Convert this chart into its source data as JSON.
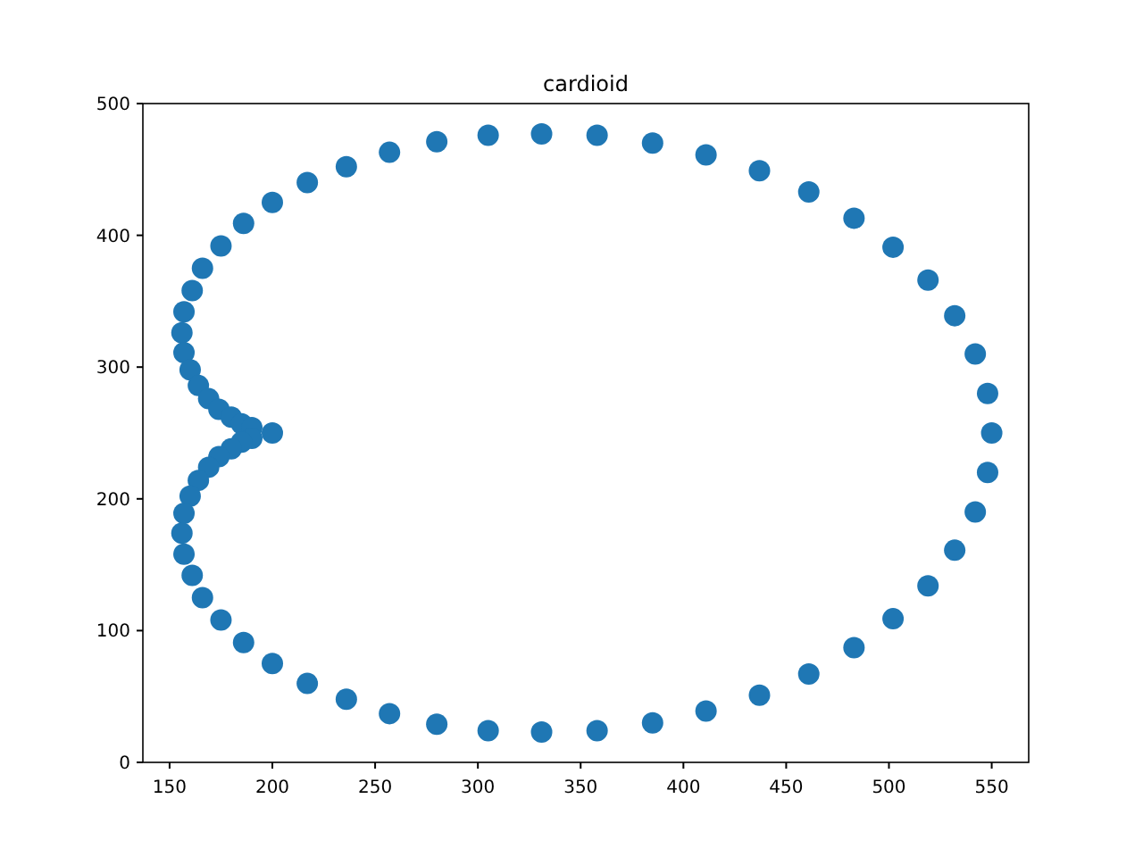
{
  "chart_data": {
    "type": "scatter",
    "title": "cardioid",
    "x": [
      550,
      548,
      542,
      532,
      519,
      502,
      483,
      461,
      437,
      411,
      385,
      358,
      331,
      305,
      280,
      257,
      236,
      217,
      200,
      186,
      175,
      166,
      161,
      157,
      156,
      157,
      160,
      164,
      169,
      174,
      180,
      185,
      190,
      200,
      190,
      185,
      180,
      174,
      169,
      164,
      160,
      157,
      156,
      157,
      161,
      166,
      175,
      186,
      200,
      217,
      236,
      257,
      280,
      305,
      331,
      358,
      385,
      411,
      437,
      461,
      483,
      502,
      519,
      532,
      542,
      548
    ],
    "series": [
      {
        "color": "#1f77b4",
        "values": [
          250,
          280,
          310,
          339,
          366,
          391,
          413,
          433,
          449,
          461,
          470,
          476,
          477,
          476,
          471,
          463,
          452,
          440,
          425,
          409,
          392,
          375,
          358,
          342,
          326,
          311,
          298,
          286,
          276,
          268,
          262,
          257,
          254,
          250,
          246,
          243,
          238,
          232,
          224,
          214,
          202,
          189,
          174,
          158,
          142,
          125,
          108,
          91,
          75,
          60,
          48,
          37,
          29,
          24,
          23,
          24,
          30,
          39,
          51,
          67,
          87,
          109,
          134,
          161,
          190,
          220
        ]
      }
    ],
    "xlim": [
      137,
      568
    ],
    "xticks": [
      150,
      200,
      250,
      300,
      350,
      400,
      450,
      500,
      550
    ],
    "ylim": [
      0,
      500
    ],
    "yticks": [
      0,
      100,
      200,
      300,
      400,
      500
    ],
    "marker": "circle",
    "grid": false
  }
}
